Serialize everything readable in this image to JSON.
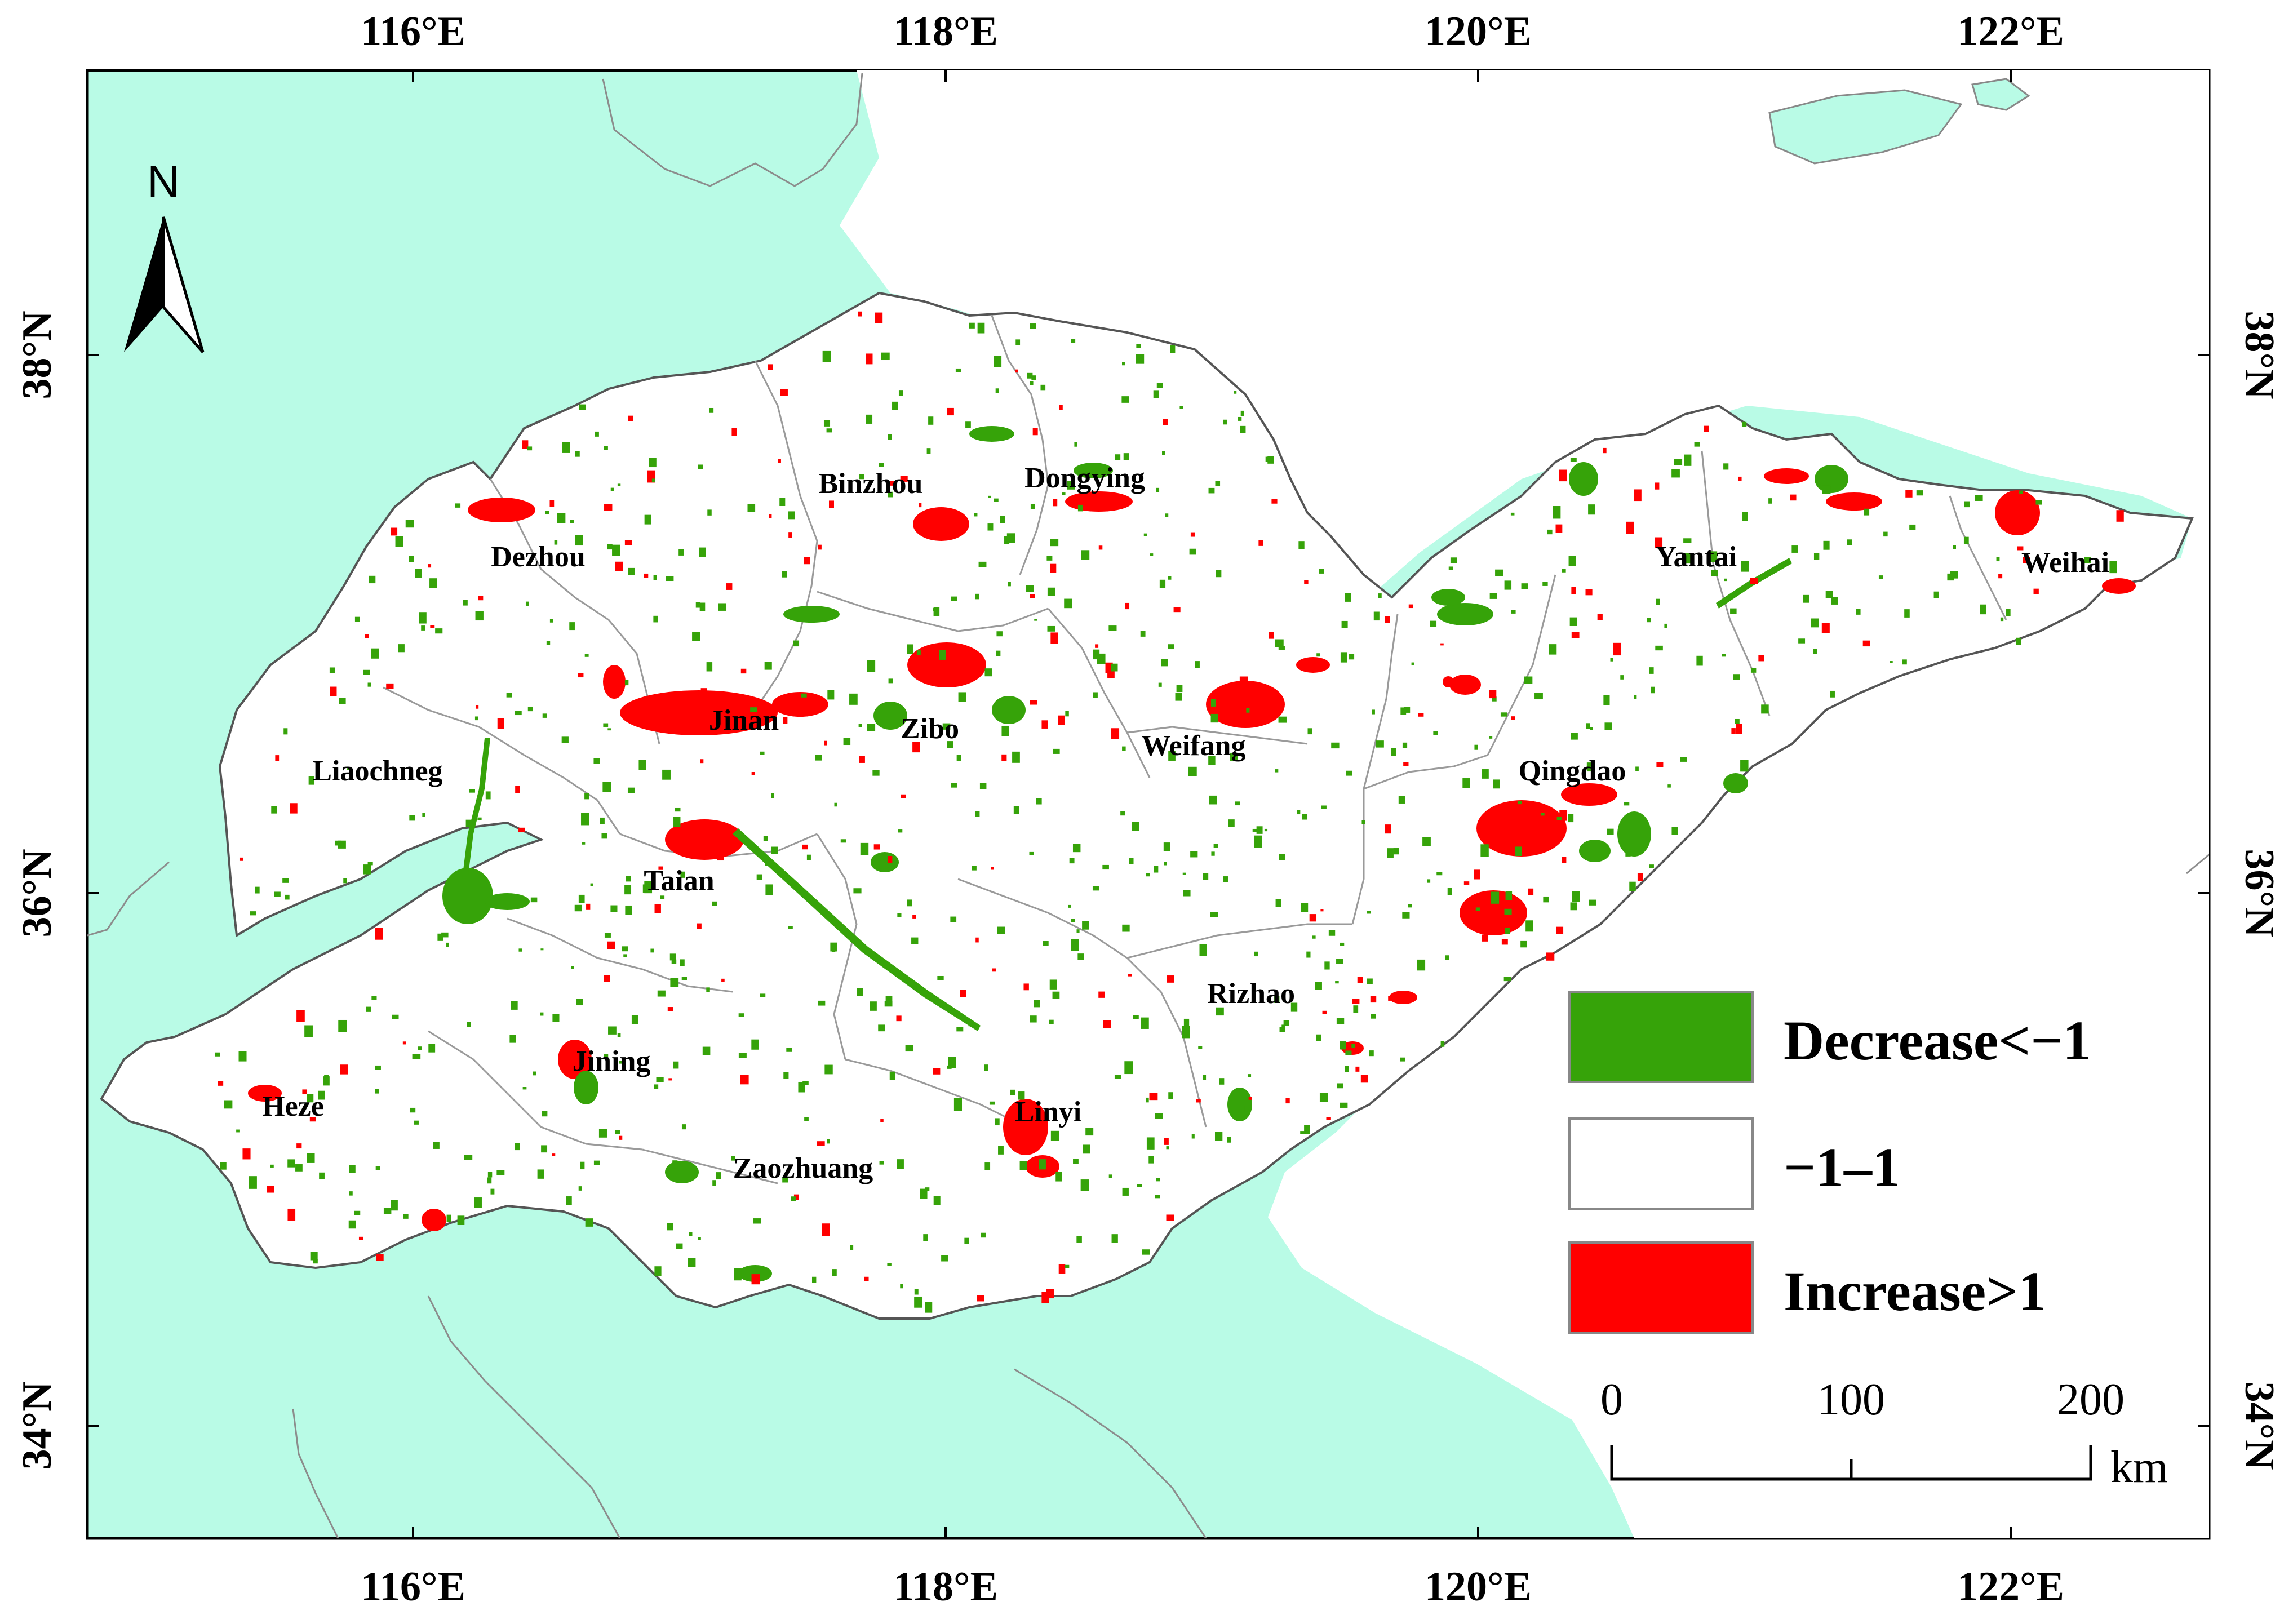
{
  "axes": {
    "top": [
      "116°E",
      "118°E",
      "120°E",
      "122°E"
    ],
    "bottom": [
      "116°E",
      "118°E",
      "120°E",
      "122°E"
    ],
    "left": [
      "38°N",
      "36°N",
      "34°N"
    ],
    "right": [
      "38°N",
      "36°N",
      "34°N"
    ]
  },
  "north_arrow": {
    "label": "N"
  },
  "cities": [
    "Binzhou",
    "Dongying",
    "Dezhou",
    "Yantai",
    "Weihai",
    "Jinan",
    "Zibo",
    "Weifang",
    "Liaochneg",
    "Qingdao",
    "Taian",
    "Rizhao",
    "Jining",
    "Heze",
    "Linyi",
    "Zaozhuang"
  ],
  "legend": {
    "items": [
      {
        "label": "Decrease<−1",
        "color": "#36a309"
      },
      {
        "label": "−1–1",
        "color": "#ffffff"
      },
      {
        "label": "Increase>1",
        "color": "#ff0000"
      }
    ]
  },
  "scale_bar": {
    "ticks": [
      "0",
      "100",
      "200"
    ],
    "unit": "km"
  },
  "colors": {
    "sea_land_other": "#b9fbe6",
    "study_area": "#ffffff",
    "decrease": "#36a309",
    "increase": "#ff0000"
  }
}
